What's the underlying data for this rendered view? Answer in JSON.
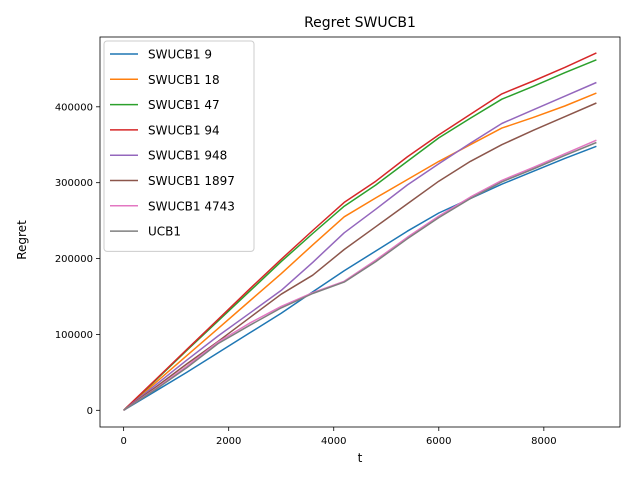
{
  "chart_data": {
    "type": "line",
    "title": "Regret SWUCB1",
    "xlabel": "t",
    "ylabel": "Regret",
    "xlim": [
      -450,
      9450
    ],
    "ylim": [
      -22000,
      492000
    ],
    "xticks": [
      0,
      2000,
      4000,
      6000,
      8000
    ],
    "yticks": [
      0,
      100000,
      200000,
      300000,
      400000
    ],
    "grid": false,
    "legend_position": "top-left",
    "series": [
      {
        "name": "SWUCB1 9",
        "color": "#1f77b4",
        "x": [
          0,
          600,
          1200,
          1800,
          2400,
          3000,
          3600,
          4200,
          4800,
          5400,
          6000,
          6600,
          7200,
          7800,
          8400,
          9000
        ],
        "y": [
          0,
          25000,
          50000,
          76000,
          102000,
          128000,
          156000,
          184000,
          210000,
          236000,
          260000,
          279000,
          298000,
          315000,
          332000,
          348000
        ]
      },
      {
        "name": "SWUCB1 18",
        "color": "#ff7f0e",
        "x": [
          0,
          600,
          1200,
          1800,
          2400,
          3000,
          3600,
          4200,
          4800,
          5400,
          6000,
          6600,
          7200,
          7800,
          8400,
          9000
        ],
        "y": [
          0,
          36000,
          72000,
          108000,
          144000,
          180000,
          218000,
          255000,
          280000,
          304000,
          328000,
          350000,
          372000,
          386000,
          401000,
          418000
        ]
      },
      {
        "name": "SWUCB1 47",
        "color": "#2ca02c",
        "x": [
          0,
          600,
          1200,
          1800,
          2400,
          3000,
          3600,
          4200,
          4800,
          5400,
          6000,
          6600,
          7200,
          7800,
          8400,
          9000
        ],
        "y": [
          0,
          39000,
          79000,
          118000,
          157000,
          196000,
          233000,
          269000,
          297000,
          328000,
          359000,
          385000,
          410000,
          427000,
          445000,
          462000
        ]
      },
      {
        "name": "SWUCB1 94",
        "color": "#d62728",
        "x": [
          0,
          600,
          1200,
          1800,
          2400,
          3000,
          3600,
          4200,
          4800,
          5400,
          6000,
          6600,
          7200,
          7800,
          8400,
          9000
        ],
        "y": [
          0,
          40000,
          80000,
          120000,
          160000,
          199000,
          237000,
          274000,
          302000,
          334000,
          363000,
          390000,
          417000,
          434000,
          452000,
          471000
        ]
      },
      {
        "name": "SWUCB1 948",
        "color": "#9467bd",
        "x": [
          0,
          600,
          1200,
          1800,
          2400,
          3000,
          3600,
          4200,
          4800,
          5400,
          6000,
          6600,
          7200,
          7800,
          8400,
          9000
        ],
        "y": [
          0,
          33000,
          66000,
          98000,
          128000,
          158000,
          195000,
          234000,
          265000,
          297000,
          325000,
          352000,
          378000,
          396000,
          414000,
          432000
        ]
      },
      {
        "name": "SWUCB1 1897",
        "color": "#8c564b",
        "x": [
          0,
          600,
          1200,
          1800,
          2400,
          3000,
          3600,
          4200,
          4800,
          5400,
          6000,
          6600,
          7200,
          7800,
          8400,
          9000
        ],
        "y": [
          0,
          30000,
          61000,
          91000,
          122000,
          153000,
          178000,
          212000,
          242000,
          272000,
          302000,
          328000,
          350000,
          369000,
          387000,
          405000
        ]
      },
      {
        "name": "SWUCB1 4743",
        "color": "#e377c2",
        "x": [
          0,
          600,
          1200,
          1800,
          2400,
          3000,
          3600,
          4200,
          4800,
          5400,
          6000,
          6600,
          7200,
          7800,
          8400,
          9000
        ],
        "y": [
          0,
          28000,
          58000,
          90000,
          115000,
          137000,
          155000,
          170000,
          198000,
          228000,
          256000,
          281000,
          303000,
          320000,
          338000,
          356000
        ]
      },
      {
        "name": "UCB1",
        "color": "#7f7f7f",
        "x": [
          0,
          600,
          1200,
          1800,
          2400,
          3000,
          3600,
          4200,
          4800,
          5400,
          6000,
          6600,
          7200,
          7800,
          8400,
          9000
        ],
        "y": [
          0,
          27000,
          56000,
          88000,
          112000,
          135000,
          154000,
          169000,
          196000,
          226000,
          254000,
          279000,
          301000,
          318000,
          336000,
          353000
        ]
      }
    ]
  }
}
